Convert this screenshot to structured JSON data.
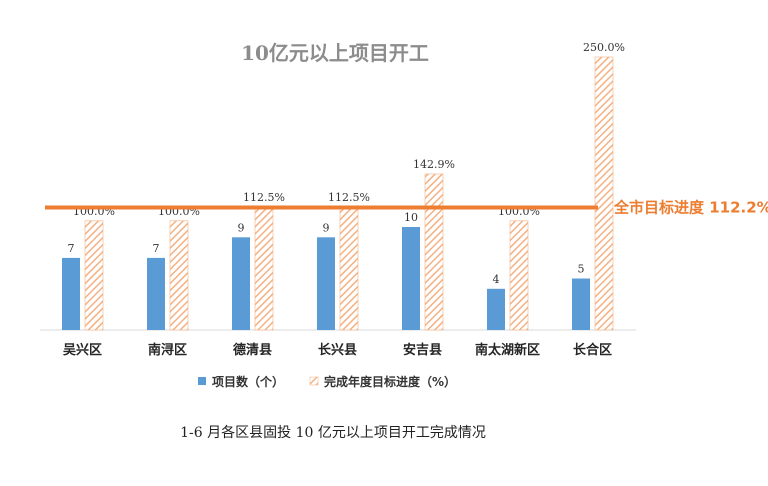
{
  "colors": {
    "count_bar": "#5b9bd5",
    "progress_hatch": "#f4b183",
    "progress_stroke": "#ed7d31",
    "reference_line": "#ed7d31",
    "axis": "#d9d9d9",
    "title": "#8c8c8c"
  },
  "chart_data": {
    "type": "bar",
    "title": "10亿元以上项目开工",
    "categories": [
      "吴兴区",
      "南浔区",
      "德清县",
      "长兴县",
      "安吉县",
      "南太湖新区",
      "长合区"
    ],
    "series": [
      {
        "name": "项目数（个）",
        "values": [
          7,
          7,
          9,
          9,
          10,
          4,
          5
        ],
        "labels": [
          "7",
          "7",
          "9",
          "9",
          "10",
          "4",
          "5"
        ]
      },
      {
        "name": "完成年度目标进度（%）",
        "values": [
          100.0,
          100.0,
          112.5,
          112.5,
          142.9,
          100.0,
          250.0
        ],
        "labels": [
          "100.0%",
          "100.0%",
          "112.5%",
          "112.5%",
          "142.9%",
          "100.0%",
          "250.0%"
        ]
      }
    ],
    "reference_line": {
      "label": "全市目标进度 112.2%",
      "value": 112.2
    },
    "legend_position": "bottom",
    "grid": false
  },
  "caption": "1-6 月各区县固投 10 亿元以上项目开工完成情况"
}
